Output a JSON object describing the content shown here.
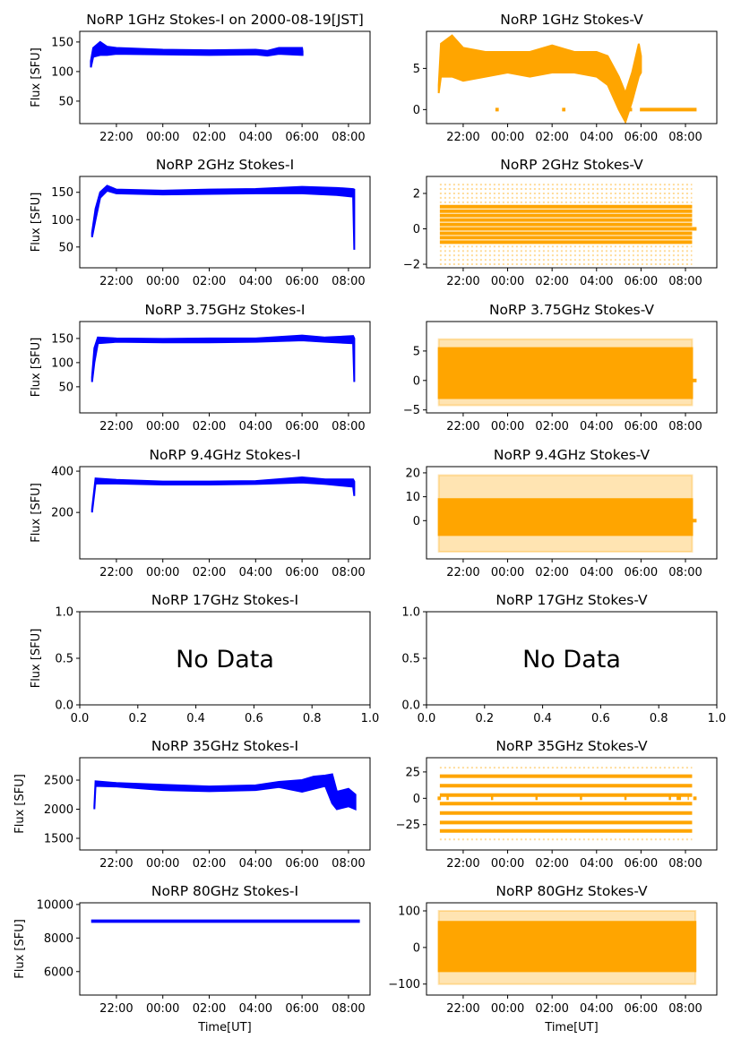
{
  "chart_data": {
    "type": "scatter",
    "layout": "7x2 grid",
    "colors": {
      "stokes_i": "#0000ff",
      "stokes_v": "#ffa500"
    },
    "xlabel": "Time[UT]",
    "ylabel": "Flux [SFU]",
    "no_data_text": "No Data",
    "time_ticks": [
      {
        "value": 22,
        "label": "22:00"
      },
      {
        "value": 24,
        "label": "00:00"
      },
      {
        "value": 26,
        "label": "02:00"
      },
      {
        "value": 28,
        "label": "04:00"
      },
      {
        "value": 30,
        "label": "06:00"
      },
      {
        "value": 32,
        "label": "08:00"
      }
    ],
    "unit_ticks": [
      {
        "value": 0,
        "label": "0.0"
      },
      {
        "value": 0.2,
        "label": "0.2"
      },
      {
        "value": 0.4,
        "label": "0.4"
      },
      {
        "value": 0.6,
        "label": "0.6"
      },
      {
        "value": 0.8,
        "label": "0.8"
      },
      {
        "value": 1,
        "label": "1.0"
      }
    ],
    "panels": [
      {
        "title": "NoRP 1GHz Stokes-I on 2000-08-19[JST]",
        "stokes": "I",
        "ylim": [
          12,
          168
        ],
        "yticks": [
          {
            "value": 50,
            "label": "50"
          },
          {
            "value": 100,
            "label": "100"
          },
          {
            "value": 150,
            "label": "150"
          }
        ],
        "band": [
          [
            20.9,
            107,
            118
          ],
          [
            21.0,
            125,
            140
          ],
          [
            21.3,
            128,
            150
          ],
          [
            21.6,
            128,
            142
          ],
          [
            22,
            130,
            140
          ],
          [
            24,
            129,
            137
          ],
          [
            26,
            128,
            136
          ],
          [
            28,
            129,
            137
          ],
          [
            28.5,
            127,
            135
          ],
          [
            29,
            130,
            140
          ],
          [
            30,
            128,
            140
          ],
          [
            30.02,
            128,
            134
          ]
        ]
      },
      {
        "title": "NoRP 1GHz Stokes-V",
        "stokes": "V",
        "ylim": [
          -1.7,
          9.5
        ],
        "yticks": [
          {
            "value": 0,
            "label": "0"
          },
          {
            "value": 5,
            "label": "5"
          }
        ],
        "band": [
          [
            20.9,
            2,
            3
          ],
          [
            21,
            4,
            8
          ],
          [
            21.5,
            4,
            9
          ],
          [
            22,
            3.5,
            7.5
          ],
          [
            23,
            4,
            7
          ],
          [
            24,
            4.5,
            7
          ],
          [
            25,
            4,
            7
          ],
          [
            26,
            4.5,
            7.8
          ],
          [
            27,
            4.5,
            7
          ],
          [
            28,
            4,
            7
          ],
          [
            28.5,
            3,
            6.5
          ],
          [
            29,
            0,
            4
          ],
          [
            29.3,
            -1.5,
            2
          ],
          [
            29.6,
            1,
            4.5
          ],
          [
            29.9,
            4,
            8
          ],
          [
            30,
            4.5,
            6.5
          ]
        ],
        "zero_segments": [
          [
            23.45,
            23.6
          ],
          [
            26.45,
            26.6
          ],
          [
            29.45,
            29.6
          ],
          [
            29.95,
            32.5
          ]
        ]
      },
      {
        "title": "NoRP 2GHz Stokes-I",
        "stokes": "I",
        "ylim": [
          12,
          179
        ],
        "yticks": [
          {
            "value": 50,
            "label": "50"
          },
          {
            "value": 100,
            "label": "100"
          },
          {
            "value": 150,
            "label": "150"
          }
        ],
        "band": [
          [
            20.95,
            68,
            76
          ],
          [
            21.1,
            100,
            120
          ],
          [
            21.3,
            140,
            150
          ],
          [
            21.6,
            153,
            162
          ],
          [
            22,
            148,
            155
          ],
          [
            24,
            146,
            153
          ],
          [
            26,
            147,
            155
          ],
          [
            28,
            148,
            156
          ],
          [
            30,
            148,
            160
          ],
          [
            31.5,
            145,
            158
          ],
          [
            32.2,
            142,
            156
          ],
          [
            32.25,
            45,
            155
          ]
        ]
      },
      {
        "title": "NoRP 2GHz Stokes-V",
        "stokes": "V",
        "ylim": [
          -2.2,
          2.96
        ],
        "yticks": [
          {
            "value": -2,
            "label": "−2"
          },
          {
            "value": 0,
            "label": "0"
          },
          {
            "value": 2,
            "label": "2"
          }
        ],
        "time_range": [
          20.95,
          32.3
        ],
        "levels": [
          -0.75,
          -0.5,
          -0.25,
          0,
          0.25,
          0.5,
          0.75,
          1,
          1.25
        ],
        "sparse_levels": [
          -2,
          -1.75,
          -1.5,
          -1.25,
          -1,
          1.5,
          1.75,
          2,
          2.25,
          2.5
        ],
        "zero_segments": [
          [
            32.3,
            32.5
          ]
        ]
      },
      {
        "title": "NoRP 3.75GHz Stokes-I",
        "stokes": "I",
        "ylim": [
          -4,
          185
        ],
        "yticks": [
          {
            "value": 50,
            "label": "50"
          },
          {
            "value": 100,
            "label": "100"
          },
          {
            "value": 150,
            "label": "150"
          }
        ],
        "band": [
          [
            20.95,
            60,
            70
          ],
          [
            21.05,
            100,
            130
          ],
          [
            21.2,
            140,
            152
          ],
          [
            22,
            143,
            150
          ],
          [
            24,
            142,
            149
          ],
          [
            26,
            142,
            150
          ],
          [
            28,
            143,
            150
          ],
          [
            30,
            146,
            156
          ],
          [
            31,
            143,
            152
          ],
          [
            32.2,
            140,
            155
          ],
          [
            32.25,
            60,
            150
          ]
        ]
      },
      {
        "title": "NoRP 3.75GHz Stokes-V",
        "stokes": "V",
        "ylim": [
          -5.5,
          10
        ],
        "yticks": [
          {
            "value": -5,
            "label": "−5"
          },
          {
            "value": 0,
            "label": "0"
          },
          {
            "value": 5,
            "label": "5"
          }
        ],
        "band": [
          [
            20.9,
            -3,
            5.5
          ],
          [
            32.3,
            -3,
            5.5
          ]
        ],
        "outer_band": [
          [
            20.9,
            -4.2,
            7
          ],
          [
            32.3,
            -4.2,
            7
          ]
        ],
        "zero_segments": [
          [
            32.3,
            32.5
          ]
        ]
      },
      {
        "title": "NoRP 9.4GHz Stokes-I",
        "stokes": "I",
        "ylim": [
          -25,
          422
        ],
        "yticks": [
          {
            "value": 200,
            "label": "200"
          },
          {
            "value": 400,
            "label": "400"
          }
        ],
        "band": [
          [
            20.95,
            200,
            215
          ],
          [
            21.1,
            340,
            365
          ],
          [
            22,
            340,
            358
          ],
          [
            24,
            335,
            350
          ],
          [
            26,
            335,
            350
          ],
          [
            28,
            338,
            352
          ],
          [
            30,
            345,
            370
          ],
          [
            31,
            338,
            360
          ],
          [
            32.2,
            325,
            360
          ],
          [
            32.25,
            280,
            350
          ]
        ]
      },
      {
        "title": "NoRP 9.4GHz Stokes-V",
        "stokes": "V",
        "ylim": [
          -16,
          22.6
        ],
        "yticks": [
          {
            "value": 0,
            "label": "0"
          },
          {
            "value": 10,
            "label": "10"
          },
          {
            "value": 20,
            "label": "20"
          }
        ],
        "band": [
          [
            20.9,
            -6,
            9
          ],
          [
            32.3,
            -6,
            9
          ]
        ],
        "outer_band": [
          [
            20.9,
            -13,
            19
          ],
          [
            32.3,
            -13,
            19
          ]
        ],
        "zero_segments": [
          [
            32.3,
            32.5
          ]
        ]
      },
      {
        "title": "NoRP 17GHz Stokes-I",
        "stokes": "I",
        "no_data": true,
        "ylim": [
          0,
          1
        ],
        "yticks": [
          {
            "value": 0,
            "label": "0.0"
          },
          {
            "value": 0.5,
            "label": "0.5"
          },
          {
            "value": 1,
            "label": "1.0"
          }
        ]
      },
      {
        "title": "NoRP 17GHz Stokes-V",
        "stokes": "V",
        "no_data": true,
        "ylim": [
          0,
          1
        ],
        "yticks": [
          {
            "value": 0,
            "label": "0.0"
          },
          {
            "value": 0.5,
            "label": "0.5"
          },
          {
            "value": 1,
            "label": "1.0"
          }
        ]
      },
      {
        "title": "NoRP 35GHz Stokes-I",
        "stokes": "I",
        "ylim": [
          1300,
          2885
        ],
        "yticks": [
          {
            "value": 1500,
            "label": "1500"
          },
          {
            "value": 2000,
            "label": "2000"
          },
          {
            "value": 2500,
            "label": "2500"
          }
        ],
        "band": [
          [
            21.05,
            2000,
            2050
          ],
          [
            21.1,
            2400,
            2480
          ],
          [
            22,
            2390,
            2450
          ],
          [
            24,
            2330,
            2420
          ],
          [
            26,
            2310,
            2390
          ],
          [
            28,
            2330,
            2410
          ],
          [
            29,
            2380,
            2470
          ],
          [
            30,
            2300,
            2500
          ],
          [
            30.5,
            2350,
            2560
          ],
          [
            31,
            2400,
            2580
          ],
          [
            31.3,
            2100,
            2600
          ],
          [
            31.5,
            2000,
            2300
          ],
          [
            32,
            2050,
            2350
          ],
          [
            32.3,
            2000,
            2250
          ]
        ]
      },
      {
        "title": "NoRP 35GHz Stokes-V",
        "stokes": "V",
        "ylim": [
          -49,
          38.5
        ],
        "yticks": [
          {
            "value": -25,
            "label": "−25"
          },
          {
            "value": 0,
            "label": "0"
          },
          {
            "value": 25,
            "label": "25"
          }
        ],
        "time_range": [
          20.95,
          32.3
        ],
        "levels": [
          21,
          12,
          3,
          -5,
          -14,
          -23,
          -31
        ],
        "sparse_levels": [
          29,
          -39
        ],
        "zero_segments": [
          [
            20.85,
            21.0
          ],
          [
            21.25,
            21.35
          ],
          [
            23.25,
            23.35
          ],
          [
            25.25,
            25.35
          ],
          [
            27.25,
            27.35
          ],
          [
            29.25,
            29.35
          ],
          [
            31.25,
            31.35
          ],
          [
            31.6,
            31.8
          ],
          [
            32.1,
            32.15
          ],
          [
            32.35,
            32.5
          ]
        ]
      },
      {
        "title": "NoRP 80GHz Stokes-I",
        "stokes": "I",
        "ylim": [
          4600,
          10100
        ],
        "yticks": [
          {
            "value": 6000,
            "label": "6000"
          },
          {
            "value": 8000,
            "label": "8000"
          },
          {
            "value": 10000,
            "label": "10000"
          }
        ],
        "band": [
          [
            20.95,
            8960,
            9050
          ],
          [
            32.45,
            8960,
            9050
          ]
        ]
      },
      {
        "title": "NoRP 80GHz Stokes-V",
        "stokes": "V",
        "ylim": [
          -130,
          122
        ],
        "yticks": [
          {
            "value": -100,
            "label": "−100"
          },
          {
            "value": 0,
            "label": "0"
          },
          {
            "value": 100,
            "label": "100"
          }
        ],
        "band": [
          [
            20.9,
            -65,
            70
          ],
          [
            32.45,
            -65,
            70
          ]
        ],
        "outer_band": [
          [
            20.9,
            -100,
            100
          ],
          [
            32.45,
            -100,
            100
          ]
        ]
      }
    ]
  }
}
